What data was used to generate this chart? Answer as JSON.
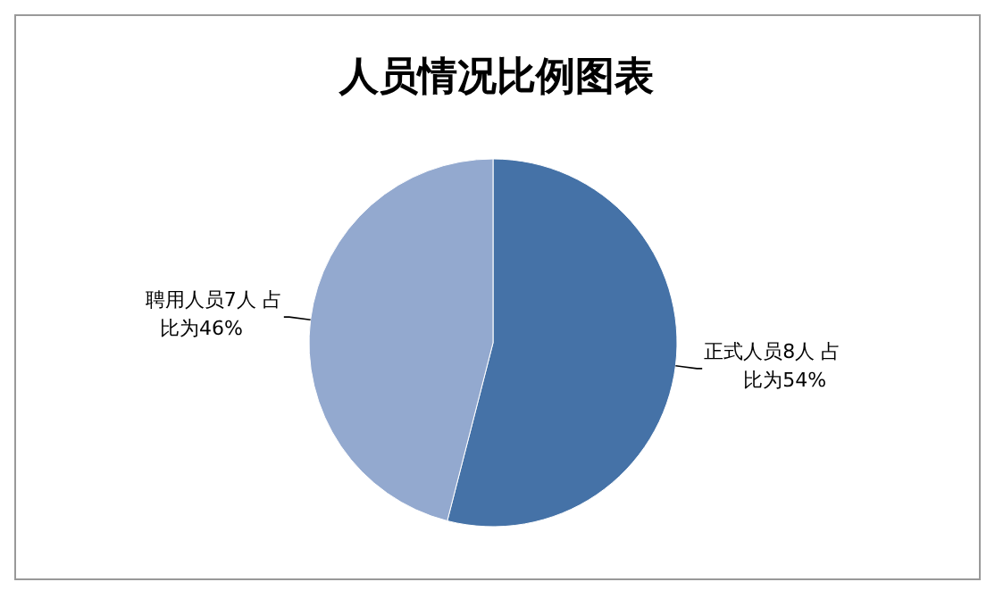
{
  "chart_data": {
    "type": "pie",
    "title": "人员情况比例图表",
    "categories": [
      "正式人员8人 占比为54%",
      "聘用人员7人 占比为46%"
    ],
    "values": [
      54,
      46
    ],
    "colors": [
      "#4572a7",
      "#93a9cf"
    ]
  }
}
